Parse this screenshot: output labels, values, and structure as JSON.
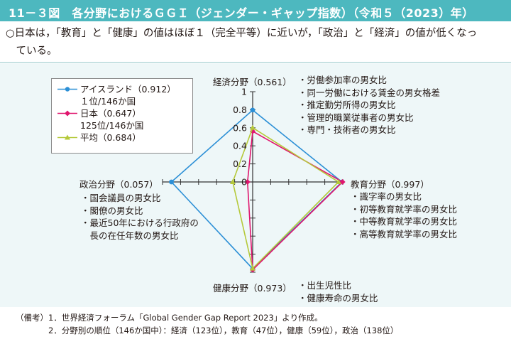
{
  "header": {
    "title": "11－３図　各分野におけるＧＧＩ（ジェンダー・ギャップ指数）（令和５（2023）年）",
    "summary_line1": "○日本は，「教育」と「健康」の値はほぼ１（完全平等）に近いが，「政治」と「経済」の値が低くなっ",
    "summary_line2": "　ている。"
  },
  "legend": {
    "items": [
      {
        "name": "アイスランド（0.912）",
        "detail": "１位/146か国"
      },
      {
        "name": "日本（0.647）",
        "detail": "125位/146か国"
      },
      {
        "name": "平均（0.684）",
        "detail": ""
      }
    ]
  },
  "axes": {
    "economy": "経済分野（0.561）",
    "education": "教育分野（0.997）",
    "health": "健康分野（0.973）",
    "politics": "政治分野（0.057）"
  },
  "indicators": {
    "economy": [
      "・労働参加率の男女比",
      "・同一労働における賃金の男女格差",
      "・推定勤労所得の男女比",
      "・管理的職業従事者の男女比",
      "・専門・技術者の男女比"
    ],
    "education": [
      "・識字率の男女比",
      "・初等教育就学率の男女比",
      "・中等教育就学率の男女比",
      "・高等教育就学率の男女比"
    ],
    "health": [
      "・出生児性比",
      "・健康寿命の男女比"
    ],
    "politics": [
      "・国会議員の男女比",
      "・閣僚の男女比",
      "・最近50年における行政府の",
      "　長の在任年数の男女比"
    ]
  },
  "notes": {
    "prefix": "（備考）",
    "line1": "1．世界経済フォーラム「Global Gender Gap Report 2023」より作成。",
    "line2": "2．分野別の順位（146か国中）：経済（123位），教育（47位），健康（59位），政治（138位）"
  },
  "colors": {
    "title_bg": "#4db8bf",
    "chart_bg": "#eef7f8",
    "iceland": "#2b8fd6",
    "japan": "#e0166e",
    "average": "#b5c93a"
  },
  "chart_data": {
    "type": "radar",
    "axes": [
      "経済分野",
      "教育分野",
      "健康分野",
      "政治分野"
    ],
    "range": [
      0,
      1
    ],
    "ticks": [
      "0",
      "0.2",
      "0.4",
      "0.6",
      "0.8",
      "1"
    ],
    "series": [
      {
        "name": "アイスランド（0.912）",
        "values": [
          0.796,
          0.991,
          0.961,
          0.901
        ]
      },
      {
        "name": "日本（0.647）",
        "values": [
          0.561,
          0.997,
          0.973,
          0.057
        ]
      },
      {
        "name": "平均（0.684）",
        "values": [
          0.601,
          0.952,
          0.958,
          0.221
        ]
      }
    ]
  }
}
